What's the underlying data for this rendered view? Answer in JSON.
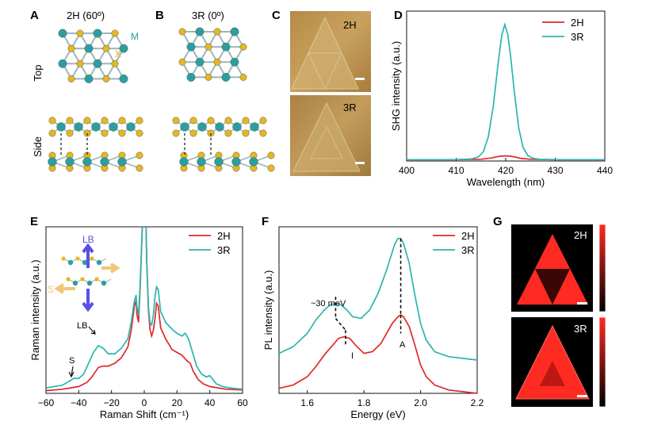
{
  "colors": {
    "h2": "#e0282a",
    "r3": "#2ab5b0",
    "metal": "#2a9fa0",
    "chalcogen": "#e6b81f",
    "afm_light": "#c49a55",
    "shg_red": "#ff2a22"
  },
  "panels": {
    "A": {
      "letter": "A",
      "title": "2H (60º)",
      "m_label": "M",
      "x_label": "X"
    },
    "B": {
      "letter": "B",
      "title": "3R (0º)"
    },
    "row_top": "Top",
    "row_side": "Side",
    "C": {
      "letter": "C",
      "top_label": "2H",
      "bottom_label": "3R"
    },
    "D": {
      "letter": "D"
    },
    "E": {
      "letter": "E",
      "lb_arrow_label": "LB",
      "s_arrow_label": "S",
      "lb_peak_label": "LB",
      "s_peak_label": "S"
    },
    "F": {
      "letter": "F",
      "delta_label": "~30 meV",
      "peak_i_label": "I",
      "peak_a_label": "A"
    },
    "G": {
      "letter": "G",
      "top_label": "2H",
      "bottom_label": "3R"
    }
  },
  "chart_data": [
    {
      "panel": "D",
      "type": "line",
      "xlabel": "Wavelength (nm)",
      "ylabel": "SHG intensity (a.u.)",
      "xlim": [
        400,
        440
      ],
      "xticks": [
        400,
        410,
        420,
        430,
        440
      ],
      "legend": [
        "2H",
        "3R"
      ],
      "legend_position": "top-right",
      "series": [
        {
          "name": "2H",
          "x": [
            400,
            405,
            410,
            415,
            417,
            418,
            419,
            420,
            421,
            422,
            423,
            425,
            430,
            440
          ],
          "y": [
            0.0,
            0.0,
            0.0,
            0.003,
            0.012,
            0.02,
            0.026,
            0.028,
            0.025,
            0.018,
            0.01,
            0.003,
            0.0,
            0.0
          ]
        },
        {
          "name": "3R",
          "x": [
            400,
            405,
            410,
            413,
            414.5,
            415.5,
            416.5,
            417.5,
            418.5,
            419.2,
            419.8,
            420.4,
            421,
            421.8,
            422.6,
            423.5,
            424.5,
            425.5,
            427,
            430,
            440
          ],
          "y": [
            0.0,
            0.0,
            0.0,
            0.005,
            0.02,
            0.06,
            0.17,
            0.4,
            0.72,
            0.92,
            1.0,
            0.93,
            0.76,
            0.48,
            0.24,
            0.09,
            0.03,
            0.01,
            0.002,
            0.0,
            0.0
          ]
        }
      ]
    },
    {
      "panel": "E",
      "type": "line",
      "xlabel": "Raman Shift (cm⁻¹)",
      "ylabel": "Raman intensity (a.u.)",
      "xlim": [
        -60,
        60
      ],
      "xticks": [
        -60,
        -40,
        -20,
        0,
        20,
        40,
        60
      ],
      "legend": [
        "2H",
        "3R"
      ],
      "legend_position": "top-right",
      "series": [
        {
          "name": "2H",
          "x": [
            -60,
            -50,
            -45,
            -40,
            -35,
            -32,
            -28,
            -25,
            -22,
            -18,
            -14,
            -10,
            -8,
            -6,
            -5,
            -4.5,
            -3.5,
            -2.5,
            -1.5,
            -1,
            1,
            1.5,
            2.5,
            3.5,
            4.5,
            5.5,
            6.5,
            7.5,
            8.5,
            10,
            13,
            17,
            20,
            23,
            26,
            28,
            30,
            33,
            36,
            40,
            45,
            50,
            60
          ],
          "y": [
            0.0,
            0.01,
            0.02,
            0.03,
            0.06,
            0.1,
            0.17,
            0.18,
            0.18,
            0.2,
            0.24,
            0.32,
            0.44,
            0.62,
            0.66,
            0.56,
            0.5,
            0.75,
            1.1,
            1.25,
            1.25,
            0.95,
            0.6,
            0.45,
            0.4,
            0.44,
            0.52,
            0.64,
            0.62,
            0.46,
            0.38,
            0.3,
            0.28,
            0.26,
            0.22,
            0.2,
            0.14,
            0.08,
            0.05,
            0.03,
            0.02,
            0.01,
            0.005
          ]
        },
        {
          "name": "3R",
          "x": [
            -60,
            -50,
            -47,
            -43,
            -40,
            -37,
            -34,
            -31,
            -28,
            -25,
            -22,
            -18,
            -14,
            -10,
            -8,
            -6,
            -5,
            -4.5,
            -3.5,
            -2.5,
            -1.5,
            -1,
            1,
            1.5,
            2.5,
            3.5,
            4.5,
            5.5,
            6.5,
            7.5,
            8.5,
            10,
            13,
            17,
            20,
            23,
            25,
            27,
            29,
            32,
            35,
            38,
            40,
            42,
            44,
            48,
            52,
            60
          ],
          "y": [
            0.02,
            0.04,
            0.06,
            0.09,
            0.09,
            0.12,
            0.2,
            0.28,
            0.33,
            0.31,
            0.27,
            0.27,
            0.31,
            0.38,
            0.5,
            0.66,
            0.7,
            0.62,
            0.55,
            0.78,
            1.1,
            1.25,
            1.25,
            0.95,
            0.62,
            0.5,
            0.48,
            0.55,
            0.68,
            0.76,
            0.74,
            0.58,
            0.5,
            0.45,
            0.42,
            0.4,
            0.42,
            0.38,
            0.3,
            0.18,
            0.12,
            0.1,
            0.11,
            0.08,
            0.05,
            0.03,
            0.02,
            0.01
          ]
        }
      ]
    },
    {
      "panel": "F",
      "type": "line",
      "xlabel": "Energy (eV)",
      "ylabel": "PL intensity (a.u.)",
      "xlim": [
        1.5,
        2.2
      ],
      "xticks": [
        1.6,
        1.8,
        2.0,
        2.2
      ],
      "legend": [
        "2H",
        "3R"
      ],
      "legend_position": "top-right",
      "series": [
        {
          "name": "2H",
          "x": [
            1.5,
            1.55,
            1.6,
            1.63,
            1.66,
            1.69,
            1.71,
            1.73,
            1.75,
            1.77,
            1.8,
            1.83,
            1.86,
            1.88,
            1.9,
            1.92,
            1.93,
            1.94,
            1.96,
            1.98,
            2.0,
            2.02,
            2.05,
            2.1,
            2.15,
            2.2
          ],
          "y": [
            0.03,
            0.05,
            0.1,
            0.16,
            0.23,
            0.29,
            0.33,
            0.34,
            0.33,
            0.29,
            0.24,
            0.25,
            0.3,
            0.36,
            0.42,
            0.46,
            0.47,
            0.46,
            0.4,
            0.29,
            0.17,
            0.1,
            0.05,
            0.02,
            0.01,
            0.0
          ]
        },
        {
          "name": "3R",
          "x": [
            1.5,
            1.55,
            1.6,
            1.63,
            1.66,
            1.68,
            1.7,
            1.72,
            1.74,
            1.76,
            1.79,
            1.82,
            1.85,
            1.88,
            1.9,
            1.91,
            1.92,
            1.93,
            1.94,
            1.96,
            1.98,
            2.0,
            2.02,
            2.05,
            2.1,
            2.15,
            2.2
          ],
          "y": [
            0.24,
            0.28,
            0.36,
            0.44,
            0.5,
            0.53,
            0.54,
            0.53,
            0.5,
            0.46,
            0.45,
            0.5,
            0.6,
            0.74,
            0.85,
            0.9,
            0.93,
            0.93,
            0.9,
            0.78,
            0.59,
            0.42,
            0.32,
            0.25,
            0.22,
            0.21,
            0.2
          ]
        }
      ]
    }
  ]
}
